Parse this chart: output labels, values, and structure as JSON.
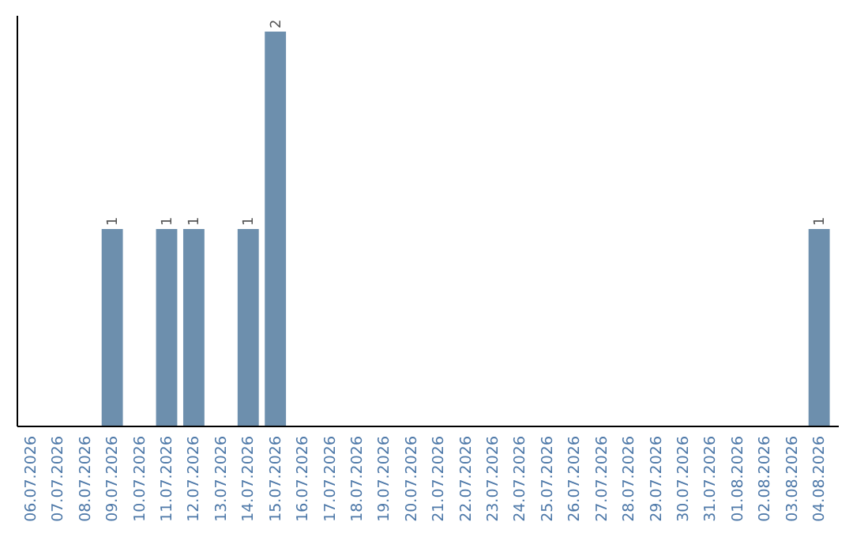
{
  "chart_data": {
    "type": "bar",
    "categories": [
      "06.07.2026",
      "07.07.2026",
      "08.07.2026",
      "09.07.2026",
      "10.07.2026",
      "11.07.2026",
      "12.07.2026",
      "13.07.2026",
      "14.07.2026",
      "15.07.2026",
      "16.07.2026",
      "17.07.2026",
      "18.07.2026",
      "19.07.2026",
      "20.07.2026",
      "21.07.2026",
      "22.07.2026",
      "23.07.2026",
      "24.07.2026",
      "25.07.2026",
      "26.07.2026",
      "27.07.2026",
      "28.07.2026",
      "29.07.2026",
      "30.07.2026",
      "31.07.2026",
      "01.08.2026",
      "02.08.2026",
      "03.08.2026",
      "04.08.2026"
    ],
    "values": [
      0,
      0,
      0,
      1,
      0,
      1,
      1,
      0,
      1,
      2,
      0,
      0,
      0,
      0,
      0,
      0,
      0,
      0,
      0,
      0,
      0,
      0,
      0,
      0,
      0,
      0,
      0,
      0,
      0,
      1
    ],
    "value_labels": [
      null,
      null,
      null,
      "1",
      null,
      "1",
      "1",
      null,
      "1",
      "2",
      null,
      null,
      null,
      null,
      null,
      null,
      null,
      null,
      null,
      null,
      null,
      null,
      null,
      null,
      null,
      null,
      null,
      null,
      null,
      "1"
    ],
    "color": "#6d8fad",
    "ylim": [
      0,
      2
    ],
    "tick_labels": "x"
  }
}
